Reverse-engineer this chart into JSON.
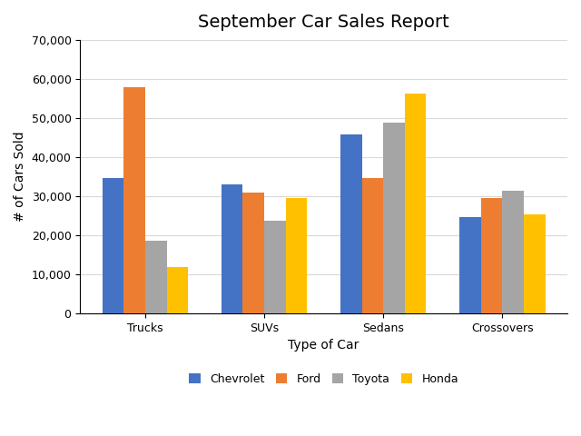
{
  "title": "September Car Sales Report",
  "categories": [
    "Trucks",
    "SUVs",
    "Sedans",
    "Crossovers"
  ],
  "series": {
    "Chevrolet": [
      34746,
      32984,
      45839,
      24783
    ],
    "Ford": [
      57894,
      30856,
      34748,
      29485
    ],
    "Toyota": [
      18586,
      23768,
      48824,
      31429
    ],
    "Honda": [
      11981,
      29528,
      56295,
      25374
    ]
  },
  "colors": {
    "Chevrolet": "#4472C4",
    "Ford": "#ED7D31",
    "Toyota": "#A5A5A5",
    "Honda": "#FFC000"
  },
  "ylabel": "# of Cars Sold",
  "xlabel": "Type of Car",
  "ylim": [
    0,
    70000
  ],
  "yticks": [
    0,
    10000,
    20000,
    30000,
    40000,
    50000,
    60000,
    70000
  ],
  "legend_labels": [
    "Chevrolet",
    "Ford",
    "Toyota",
    "Honda"
  ],
  "background_color": "#FFFFFF",
  "plot_background": "#FFFFFF",
  "title_fontsize": 14,
  "label_fontsize": 10,
  "tick_fontsize": 9,
  "legend_fontsize": 9
}
